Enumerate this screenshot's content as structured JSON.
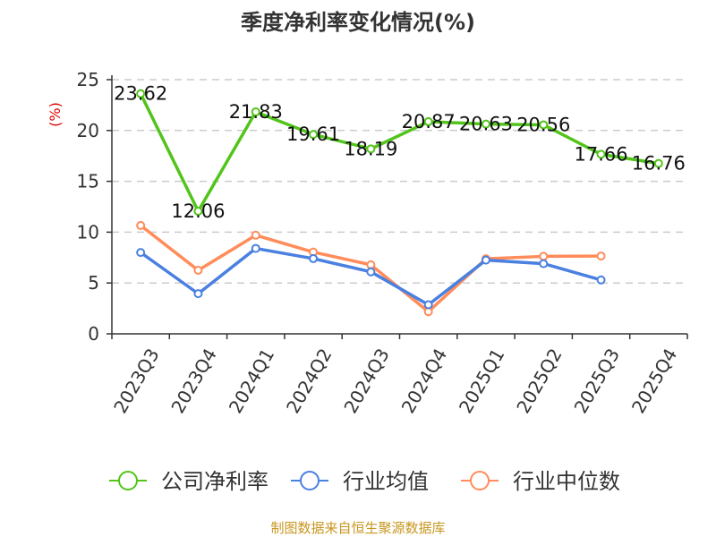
{
  "chart_data": {
    "type": "line",
    "title": "季度净利率变化情况(%)",
    "ylabel": "(%)",
    "xlabel": "",
    "ylim": [
      0,
      25
    ],
    "yticks": [
      0,
      5,
      10,
      15,
      20,
      25
    ],
    "grid": true,
    "legend_position": "bottom",
    "categories": [
      "2023Q3",
      "2023Q4",
      "2024Q1",
      "2024Q2",
      "2024Q3",
      "2024Q4",
      "2025Q1",
      "2025Q2",
      "2025Q3",
      "2025Q4"
    ],
    "series": [
      {
        "name": "公司净利率",
        "color": "#52c41a",
        "labels": true,
        "values": [
          23.62,
          12.06,
          21.83,
          19.61,
          18.19,
          20.87,
          20.63,
          20.56,
          17.66,
          16.76
        ]
      },
      {
        "name": "行业均值",
        "color": "#4a80e0",
        "labels": false,
        "values": [
          8.0,
          3.95,
          8.4,
          7.4,
          6.1,
          2.86,
          7.25,
          6.9,
          5.3,
          null
        ]
      },
      {
        "name": "行业中位数",
        "color": "#ff8c5a",
        "labels": false,
        "values": [
          10.66,
          6.25,
          9.7,
          8.04,
          6.79,
          2.18,
          7.38,
          7.62,
          7.65,
          null
        ]
      }
    ],
    "source": "制图数据来自恒生聚源数据库"
  }
}
